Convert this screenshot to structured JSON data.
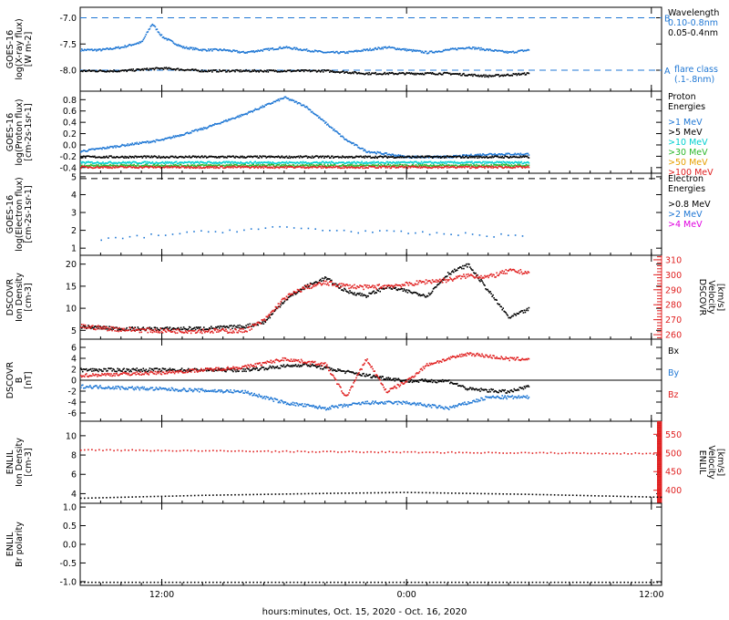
{
  "colors": {
    "black": "#000000",
    "blue": "#1f77d4",
    "cyan": "#00d0d0",
    "green": "#2db82d",
    "orange": "#e6a000",
    "red": "#e02020",
    "magenta": "#e000e0"
  },
  "xaxis": {
    "ticks": [
      {
        "label": "12:00",
        "hour": 12
      },
      {
        "label": "0:00",
        "hour": 24
      },
      {
        "label": "12:00",
        "hour": 36
      }
    ],
    "title": "hours:minutes, Oct. 15, 2020 - Oct. 16, 2020",
    "range": [
      8,
      36.5
    ]
  },
  "chart_data": [
    {
      "type": "scatter",
      "id": "xray",
      "ylabel": [
        "GOES-16",
        "log(X-ray flux)",
        "[W m-2]"
      ],
      "yticks": [
        "-7.0",
        "-7.5",
        "-8.0"
      ],
      "ylim": [
        -8.4,
        -6.8
      ],
      "thresholds": [
        {
          "value": -7.0,
          "letter": "B"
        },
        {
          "value": -8.0,
          "letter": "A"
        }
      ],
      "legend": {
        "title": "Wavelength",
        "items": [
          {
            "label": "0.10-0.8nm",
            "color": "#1f77d4"
          },
          {
            "label": "0.05-0.4nm",
            "color": "#000000"
          }
        ],
        "note": [
          "flare class",
          "(.1-.8nm)"
        ]
      },
      "series": [
        {
          "name": "0.10-0.8nm",
          "color": "#1f77d4",
          "points": [
            [
              8,
              -7.6
            ],
            [
              9,
              -7.6
            ],
            [
              10,
              -7.55
            ],
            [
              11,
              -7.45
            ],
            [
              11.5,
              -7.1
            ],
            [
              12,
              -7.35
            ],
            [
              13,
              -7.55
            ],
            [
              14,
              -7.6
            ],
            [
              15,
              -7.6
            ],
            [
              16,
              -7.65
            ],
            [
              17,
              -7.6
            ],
            [
              18,
              -7.55
            ],
            [
              19,
              -7.6
            ],
            [
              20,
              -7.65
            ],
            [
              21,
              -7.65
            ],
            [
              22,
              -7.6
            ],
            [
              23,
              -7.55
            ],
            [
              24,
              -7.6
            ],
            [
              25,
              -7.65
            ],
            [
              26,
              -7.6
            ],
            [
              27,
              -7.55
            ],
            [
              28,
              -7.6
            ],
            [
              29,
              -7.65
            ],
            [
              30,
              -7.6
            ]
          ]
        },
        {
          "name": "0.05-0.4nm",
          "color": "#000000",
          "points": [
            [
              8,
              -8.0
            ],
            [
              10,
              -8.0
            ],
            [
              12,
              -7.95
            ],
            [
              14,
              -8.0
            ],
            [
              16,
              -8.0
            ],
            [
              18,
              -8.0
            ],
            [
              20,
              -8.0
            ],
            [
              22,
              -8.05
            ],
            [
              24,
              -8.05
            ],
            [
              26,
              -8.05
            ],
            [
              28,
              -8.1
            ],
            [
              30,
              -8.05
            ]
          ]
        }
      ]
    },
    {
      "type": "scatter",
      "id": "proton",
      "ylabel": [
        "GOES-16",
        "log(Proton flux)",
        "[cm-2s-1sr-1]"
      ],
      "yticks": [
        "0.8",
        "0.6",
        "0.4",
        "0.2",
        "0.0",
        "-0.2",
        "-0.4"
      ],
      "ylim": [
        -0.5,
        0.95
      ],
      "legend": {
        "title": [
          "Proton",
          "Energies"
        ],
        "items": [
          {
            "label": ">1 MeV",
            "color": "#1f77d4"
          },
          {
            "label": ">5 MeV",
            "color": "#000000"
          },
          {
            "label": ">10 MeV",
            "color": "#00d0d0"
          },
          {
            "label": ">30 MeV",
            "color": "#2db82d"
          },
          {
            "label": ">50 MeV",
            "color": "#e6a000"
          },
          {
            "label": ">100 MeV",
            "color": "#e02020"
          }
        ]
      },
      "series": [
        {
          "name": ">1 MeV",
          "color": "#1f77d4",
          "points": [
            [
              8,
              -0.1
            ],
            [
              10,
              0.0
            ],
            [
              12,
              0.1
            ],
            [
              14,
              0.3
            ],
            [
              16,
              0.55
            ],
            [
              18,
              0.85
            ],
            [
              19,
              0.7
            ],
            [
              20,
              0.4
            ],
            [
              21,
              0.1
            ],
            [
              22,
              -0.1
            ],
            [
              24,
              -0.2
            ],
            [
              26,
              -0.2
            ],
            [
              28,
              -0.15
            ],
            [
              30,
              -0.15
            ]
          ]
        },
        {
          "name": ">5 MeV",
          "color": "#000000",
          "points": [
            [
              8,
              -0.2
            ],
            [
              30,
              -0.2
            ]
          ]
        },
        {
          "name": ">10 MeV",
          "color": "#00d0d0",
          "points": [
            [
              8,
              -0.3
            ],
            [
              30,
              -0.3
            ]
          ]
        },
        {
          "name": ">30 MeV",
          "color": "#2db82d",
          "points": [
            [
              8,
              -0.35
            ],
            [
              30,
              -0.35
            ]
          ]
        },
        {
          "name": ">100 MeV",
          "color": "#e02020",
          "points": [
            [
              8,
              -0.38
            ],
            [
              30,
              -0.38
            ]
          ]
        }
      ]
    },
    {
      "type": "scatter",
      "id": "electron",
      "ylabel": [
        "GOES-16",
        "log(Electron flux)",
        "[cm-2s-1sr-1]"
      ],
      "yticks": [
        "5",
        "4",
        "3",
        "2",
        "1"
      ],
      "ylim": [
        0.6,
        5.2
      ],
      "thresholds": [
        {
          "value": 4.9
        }
      ],
      "legend": {
        "title": [
          "Electron",
          "Energies"
        ],
        "items": [
          {
            "label": ">0.8 MeV",
            "color": "#000000"
          },
          {
            "label": ">2 MeV",
            "color": "#1f77d4"
          },
          {
            "label": ">4 MeV",
            "color": "#e000e0"
          }
        ]
      },
      "series": [
        {
          "name": ">2 MeV",
          "color": "#1f77d4",
          "points": [
            [
              9,
              1.5
            ],
            [
              12,
              1.8
            ],
            [
              15,
              2.0
            ],
            [
              18,
              2.2
            ],
            [
              21,
              2.0
            ],
            [
              24,
              1.9
            ],
            [
              27,
              1.8
            ],
            [
              30,
              1.7
            ]
          ]
        }
      ]
    },
    {
      "type": "scatter",
      "id": "dscovr_density",
      "ylabel": [
        "DSCOVR",
        "Ion Density",
        "[cm-3]"
      ],
      "yticks": [
        "20",
        "15",
        "10",
        "5"
      ],
      "ylim": [
        3,
        22
      ],
      "y2label": [
        "DSCOVR",
        "Velocity",
        "[km/s]"
      ],
      "y2ticks": [
        "310",
        "300",
        "290",
        "280",
        "270",
        "260"
      ],
      "y2lim": [
        257,
        313
      ],
      "series": [
        {
          "name": "density",
          "color": "#000000",
          "points": [
            [
              8,
              6
            ],
            [
              10,
              5.5
            ],
            [
              12,
              5.5
            ],
            [
              14,
              5.6
            ],
            [
              16,
              6
            ],
            [
              17,
              7
            ],
            [
              18,
              12
            ],
            [
              19,
              15
            ],
            [
              20,
              17
            ],
            [
              21,
              14
            ],
            [
              22,
              13
            ],
            [
              23,
              15
            ],
            [
              24,
              14
            ],
            [
              25,
              13
            ],
            [
              26,
              18
            ],
            [
              27,
              20
            ],
            [
              28,
              14
            ],
            [
              29,
              8
            ],
            [
              30,
              10
            ]
          ]
        },
        {
          "name": "velocity",
          "color": "#e02020",
          "axis": "y2",
          "points": [
            [
              8,
              266
            ],
            [
              10,
              264
            ],
            [
              12,
              263
            ],
            [
              14,
              263
            ],
            [
              16,
              263
            ],
            [
              17,
              270
            ],
            [
              18,
              285
            ],
            [
              19,
              292
            ],
            [
              20,
              295
            ],
            [
              21,
              293
            ],
            [
              22,
              292
            ],
            [
              23,
              293
            ],
            [
              24,
              294
            ],
            [
              25,
              296
            ],
            [
              26,
              297
            ],
            [
              27,
              300
            ],
            [
              28,
              299
            ],
            [
              29,
              303
            ],
            [
              30,
              302
            ]
          ]
        }
      ]
    },
    {
      "type": "scatter",
      "id": "dscovr_b",
      "ylabel": [
        "DSCOVR",
        "B",
        "[nT]"
      ],
      "yticks": [
        "6",
        "4",
        "2",
        "0",
        "-2",
        "-4",
        "-6"
      ],
      "ylim": [
        -7.5,
        7.5
      ],
      "legend": {
        "items": [
          {
            "label": "Bx",
            "color": "#000000"
          },
          {
            "label": "By",
            "color": "#1f77d4"
          },
          {
            "label": "Bz",
            "color": "#e02020"
          }
        ]
      },
      "series": [
        {
          "name": "Bx",
          "color": "#000000",
          "points": [
            [
              8,
              2
            ],
            [
              12,
              2
            ],
            [
              16,
              2
            ],
            [
              19,
              3
            ],
            [
              22,
              1
            ],
            [
              24,
              0
            ],
            [
              26,
              0
            ],
            [
              27,
              -1.5
            ],
            [
              29,
              -2
            ],
            [
              30,
              -1
            ]
          ]
        },
        {
          "name": "By",
          "color": "#1f77d4",
          "points": [
            [
              8,
              -1
            ],
            [
              12,
              -1.5
            ],
            [
              16,
              -2
            ],
            [
              18,
              -4
            ],
            [
              20,
              -5
            ],
            [
              22,
              -4
            ],
            [
              24,
              -4
            ],
            [
              26,
              -5
            ],
            [
              28,
              -3
            ],
            [
              30,
              -3
            ]
          ]
        },
        {
          "name": "Bz",
          "color": "#e02020",
          "points": [
            [
              8,
              1
            ],
            [
              12,
              1.5
            ],
            [
              16,
              2.5
            ],
            [
              18,
              4
            ],
            [
              20,
              3
            ],
            [
              21,
              -3
            ],
            [
              22,
              4
            ],
            [
              23,
              -2
            ],
            [
              24,
              0
            ],
            [
              25,
              3
            ],
            [
              27,
              5
            ],
            [
              29,
              4
            ],
            [
              30,
              4
            ]
          ]
        }
      ]
    },
    {
      "type": "line",
      "id": "enlil_density",
      "ylabel": [
        "ENLIL",
        "Ion Density",
        "[cm-3]"
      ],
      "yticks": [
        "10",
        "8",
        "6",
        "4"
      ],
      "ylim": [
        3,
        11.5
      ],
      "y2label": [
        "ENLIL",
        "Velocity",
        "[km/s]"
      ],
      "y2ticks": [
        "550",
        "500",
        "450",
        "400"
      ],
      "y2lim": [
        365,
        585
      ],
      "series": [
        {
          "name": "density",
          "color": "#000000",
          "points": [
            [
              8,
              3.6
            ],
            [
              14,
              3.9
            ],
            [
              20,
              4.1
            ],
            [
              24,
              4.2
            ],
            [
              30,
              4.0
            ],
            [
              36.5,
              3.7
            ]
          ]
        },
        {
          "name": "velocity",
          "color": "#e02020",
          "axis": "y2",
          "points": [
            [
              8,
              510
            ],
            [
              20,
              505
            ],
            [
              30,
              502
            ],
            [
              36.5,
              500
            ]
          ]
        }
      ]
    },
    {
      "type": "line",
      "id": "enlil_polarity",
      "ylabel": [
        "ENLIL",
        "Br polarity"
      ],
      "yticks": [
        "1.0",
        "0.5",
        "0.0",
        "-0.5",
        "-1.0"
      ],
      "ylim": [
        -1.1,
        1.1
      ],
      "series": [
        {
          "name": "polarity",
          "color": "#000000",
          "points": [
            [
              8,
              -1
            ],
            [
              36.5,
              -1
            ]
          ]
        }
      ]
    }
  ]
}
